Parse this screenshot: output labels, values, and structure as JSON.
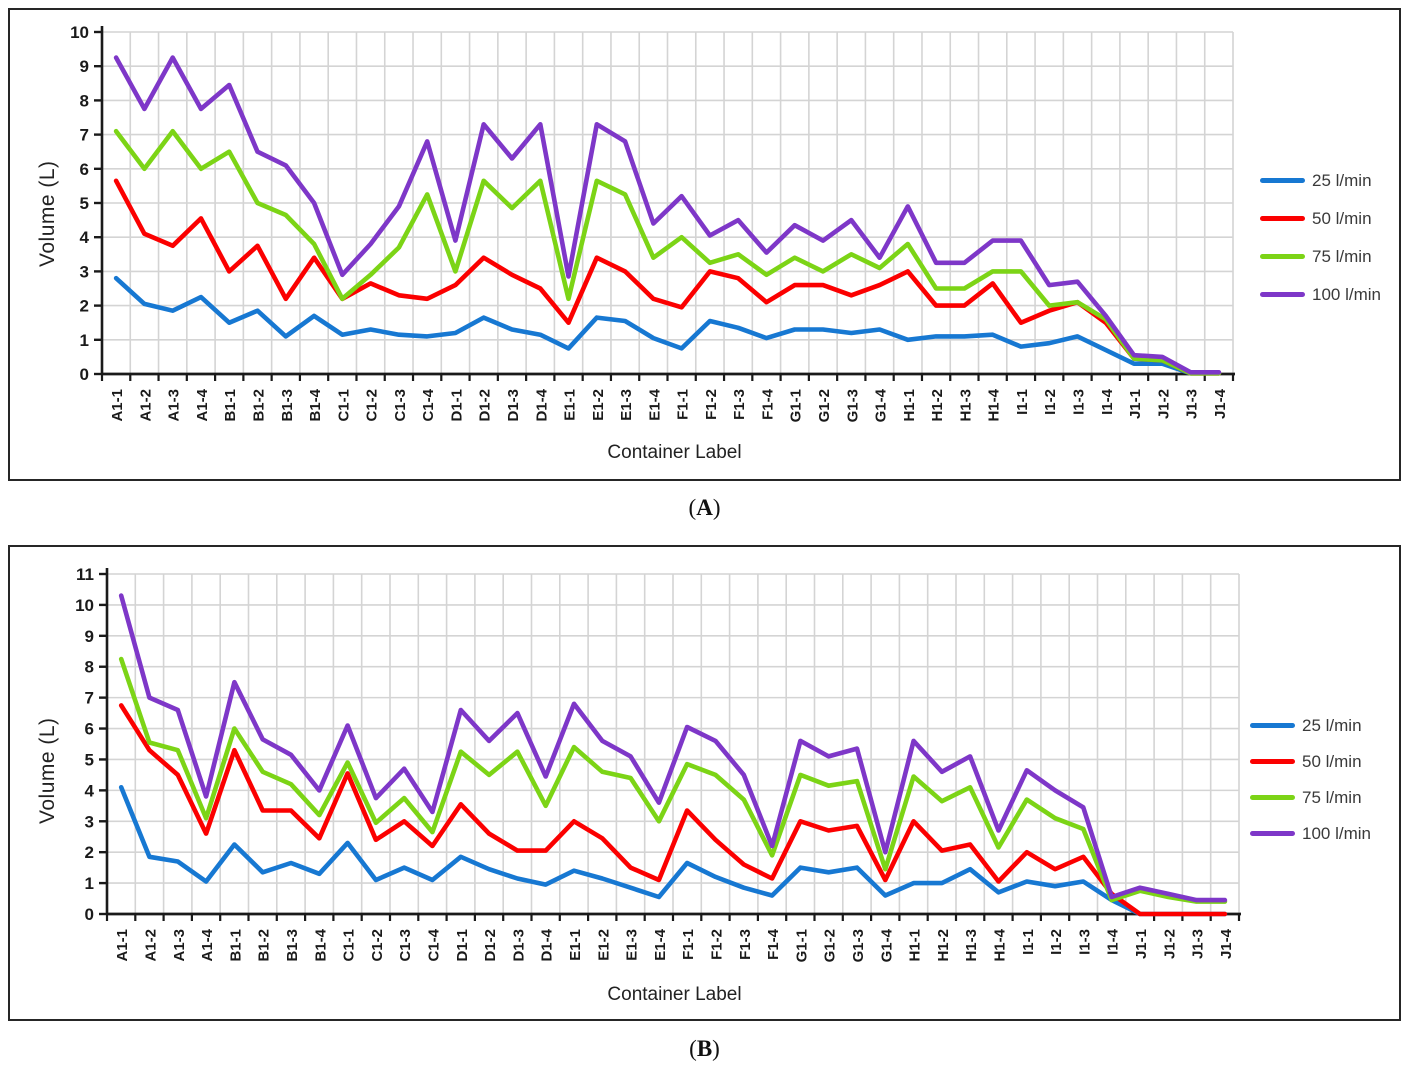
{
  "figure": {
    "captions": [
      {
        "pre": "(",
        "letter": "A",
        "post": ")"
      },
      {
        "pre": "(",
        "letter": "B",
        "post": ")"
      }
    ]
  },
  "chart_data": [
    {
      "type": "line",
      "panel": "A",
      "xlabel": "Container Label",
      "ylabel": "Volume (L)",
      "ylim": [
        0,
        10
      ],
      "yticks": [
        0,
        1,
        2,
        3,
        4,
        5,
        6,
        7,
        8,
        9,
        10
      ],
      "grid": true,
      "legend_position": "right",
      "categories": [
        "A1-1",
        "A1-2",
        "A1-3",
        "A1-4",
        "B1-1",
        "B1-2",
        "B1-3",
        "B1-4",
        "C1-1",
        "C1-2",
        "C1-3",
        "C1-4",
        "D1-1",
        "D1-2",
        "D1-3",
        "D1-4",
        "E1-1",
        "E1-2",
        "E1-3",
        "E1-4",
        "F1-1",
        "F1-2",
        "F1-3",
        "F1-4",
        "G1-1",
        "G1-2",
        "G1-3",
        "G1-4",
        "H1-1",
        "H1-2",
        "H1-3",
        "H1-4",
        "I1-1",
        "I1-2",
        "I1-3",
        "I1-4",
        "J1-1",
        "J1-2",
        "J1-3",
        "J1-4"
      ],
      "series": [
        {
          "name": "25 l/min",
          "color": "#1778D2",
          "values": [
            2.8,
            2.05,
            1.85,
            2.25,
            1.5,
            1.85,
            1.1,
            1.7,
            1.15,
            1.3,
            1.15,
            1.1,
            1.2,
            1.65,
            1.3,
            1.15,
            0.75,
            1.65,
            1.55,
            1.05,
            0.75,
            1.55,
            1.35,
            1.05,
            1.3,
            1.3,
            1.2,
            1.3,
            1.0,
            1.1,
            1.1,
            1.15,
            0.8,
            0.9,
            1.1,
            0.7,
            0.3,
            0.3,
            0.02,
            0.02
          ]
        },
        {
          "name": "50 l/min",
          "color": "#FB0000",
          "values": [
            5.65,
            4.1,
            3.75,
            4.55,
            3.0,
            3.75,
            2.2,
            3.4,
            2.2,
            2.65,
            2.3,
            2.2,
            2.6,
            3.4,
            2.9,
            2.5,
            1.5,
            3.4,
            3.0,
            2.2,
            1.95,
            3.0,
            2.8,
            2.1,
            2.6,
            2.6,
            2.3,
            2.6,
            3.0,
            2.0,
            2.0,
            2.65,
            1.5,
            1.85,
            2.1,
            1.5,
            0.45,
            0.4,
            0.02,
            0.02
          ]
        },
        {
          "name": "75 l/min",
          "color": "#7CD416",
          "values": [
            7.1,
            6.0,
            7.1,
            6.0,
            6.5,
            5.0,
            4.65,
            3.8,
            2.2,
            2.9,
            3.7,
            5.25,
            3.0,
            5.65,
            4.85,
            5.65,
            2.2,
            5.65,
            5.25,
            3.4,
            4.0,
            3.25,
            3.5,
            2.9,
            3.4,
            3.0,
            3.5,
            3.1,
            3.8,
            2.5,
            2.5,
            3.0,
            3.0,
            2.0,
            2.1,
            1.6,
            0.45,
            0.4,
            0.02,
            0.02
          ]
        },
        {
          "name": "100 l/min",
          "color": "#7E37C8",
          "values": [
            9.25,
            7.75,
            9.25,
            7.75,
            8.45,
            6.5,
            6.1,
            5.0,
            2.9,
            3.8,
            4.9,
            6.8,
            3.9,
            7.3,
            6.3,
            7.3,
            2.85,
            7.3,
            6.8,
            4.4,
            5.2,
            4.05,
            4.5,
            3.55,
            4.35,
            3.9,
            4.5,
            3.4,
            4.9,
            3.25,
            3.25,
            3.9,
            3.9,
            2.6,
            2.7,
            1.7,
            0.55,
            0.5,
            0.05,
            0.05
          ]
        }
      ]
    },
    {
      "type": "line",
      "panel": "B",
      "xlabel": "Container Label",
      "ylabel": "Volume (L)",
      "ylim": [
        0,
        11
      ],
      "yticks": [
        0,
        1,
        2,
        3,
        4,
        5,
        6,
        7,
        8,
        9,
        10,
        11
      ],
      "grid": true,
      "legend_position": "right",
      "categories": [
        "A1-1",
        "A1-2",
        "A1-3",
        "A1-4",
        "B1-1",
        "B1-2",
        "B1-3",
        "B1-4",
        "C1-1",
        "C1-2",
        "C1-3",
        "C1-4",
        "D1-1",
        "D1-2",
        "D1-3",
        "D1-4",
        "E1-1",
        "E1-2",
        "E1-3",
        "E1-4",
        "F1-1",
        "F1-2",
        "F1-3",
        "F1-4",
        "G1-1",
        "G1-2",
        "G1-3",
        "G1-4",
        "H1-1",
        "H1-2",
        "H1-3",
        "H1-4",
        "I1-1",
        "I1-2",
        "I1-3",
        "I1-4",
        "J1-1",
        "J1-2",
        "J1-3",
        "J1-4"
      ],
      "series": [
        {
          "name": "25 l/min",
          "color": "#1778D2",
          "values": [
            4.1,
            1.85,
            1.7,
            1.05,
            2.25,
            1.35,
            1.65,
            1.3,
            2.3,
            1.1,
            1.5,
            1.1,
            1.85,
            1.45,
            1.15,
            0.95,
            1.4,
            1.15,
            0.85,
            0.55,
            1.65,
            1.2,
            0.85,
            0.6,
            1.5,
            1.35,
            1.5,
            0.6,
            1.0,
            1.0,
            1.45,
            0.7,
            1.05,
            0.9,
            1.05,
            0.45,
            0,
            0,
            0,
            0
          ]
        },
        {
          "name": "50 l/min",
          "color": "#FB0000",
          "values": [
            6.75,
            5.3,
            4.5,
            2.6,
            5.3,
            3.35,
            3.35,
            2.45,
            4.55,
            2.4,
            3.0,
            2.2,
            3.55,
            2.6,
            2.05,
            2.05,
            3.0,
            2.45,
            1.5,
            1.1,
            3.35,
            2.4,
            1.6,
            1.15,
            3.0,
            2.7,
            2.85,
            1.1,
            3.0,
            2.05,
            2.25,
            1.05,
            2.0,
            1.45,
            1.85,
            0.65,
            0,
            0,
            0,
            0
          ]
        },
        {
          "name": "75 l/min",
          "color": "#7CD416",
          "values": [
            8.25,
            5.55,
            5.3,
            3.1,
            6.0,
            4.6,
            4.2,
            3.2,
            4.9,
            2.95,
            3.75,
            2.65,
            5.25,
            4.5,
            5.25,
            3.5,
            5.4,
            4.6,
            4.4,
            3.0,
            4.85,
            4.5,
            3.7,
            1.9,
            4.5,
            4.15,
            4.3,
            1.45,
            4.45,
            3.65,
            4.1,
            2.15,
            3.7,
            3.1,
            2.75,
            0.45,
            0.75,
            0.55,
            0.4,
            0.4
          ]
        },
        {
          "name": "100 l/min",
          "color": "#7E37C8",
          "values": [
            10.3,
            7.0,
            6.6,
            3.8,
            7.5,
            5.65,
            5.15,
            4.0,
            6.1,
            3.75,
            4.7,
            3.3,
            6.6,
            5.6,
            6.5,
            4.45,
            6.8,
            5.6,
            5.1,
            3.6,
            6.05,
            5.6,
            4.5,
            2.2,
            5.6,
            5.1,
            5.35,
            2.0,
            5.6,
            4.6,
            5.1,
            2.7,
            4.65,
            4.0,
            3.45,
            0.55,
            0.85,
            0.65,
            0.45,
            0.45
          ]
        }
      ]
    }
  ]
}
